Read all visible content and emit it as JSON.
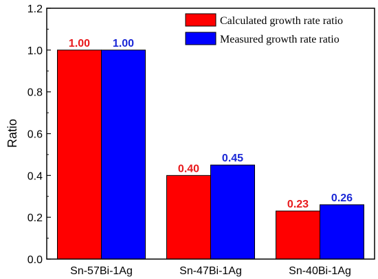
{
  "chart_data": {
    "type": "bar",
    "title": "",
    "xlabel": "",
    "ylabel": "Ratio",
    "categories": [
      "Sn-57Bi-1Ag",
      "Sn-47Bi-1Ag",
      "Sn-40Bi-1Ag"
    ],
    "ylim": [
      0.0,
      1.2
    ],
    "yticks": [
      "0.0",
      "0.2",
      "0.4",
      "0.6",
      "0.8",
      "1.0",
      "1.2"
    ],
    "grid": false,
    "legend_position": "top-right",
    "series": [
      {
        "name": "Calculated growth rate ratio",
        "color": "#ff0000",
        "label_color": "#e8191c",
        "values": [
          1.0,
          0.4,
          0.23
        ],
        "labels": [
          "1.00",
          "0.40",
          "0.23"
        ]
      },
      {
        "name": "Measured growth rate ratio",
        "color": "#0000ff",
        "label_color": "#1a27d6",
        "values": [
          1.0,
          0.45,
          0.26
        ],
        "labels": [
          "1.00",
          "0.45",
          "0.26"
        ]
      }
    ]
  }
}
